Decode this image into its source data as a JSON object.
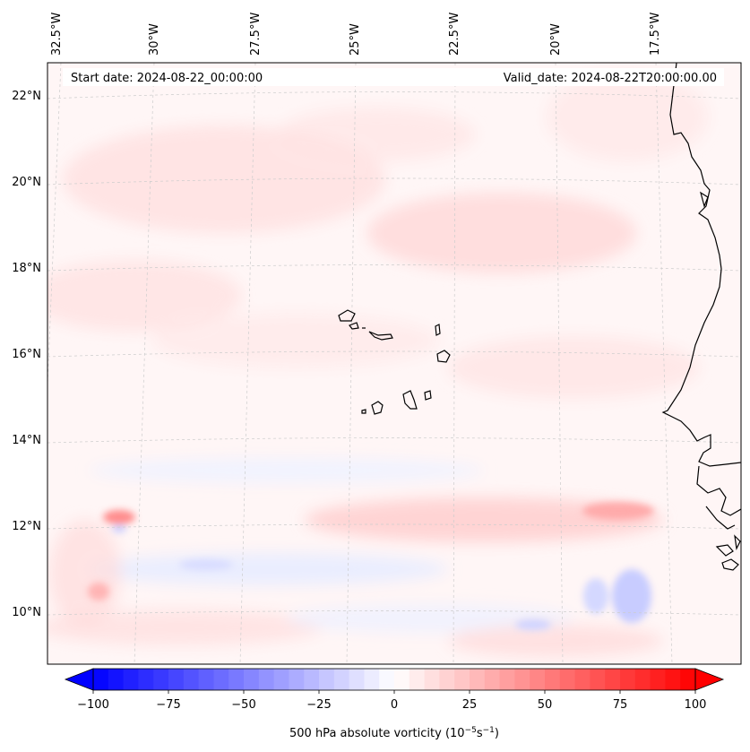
{
  "header": {
    "start_date": "Start date: 2024-08-22_00:00:00",
    "valid_date": "Valid_date: 2024-08-22T20:00:00.00"
  },
  "top_labels": [
    "32.5°W",
    "30°W",
    "27.5°W",
    "25°W",
    "22.5°W",
    "20°W",
    "17.5°W"
  ],
  "lat_labels": [
    "22°N",
    "20°N",
    "18°N",
    "16°N",
    "14°N",
    "12°N",
    "10°N"
  ],
  "colorbar": {
    "ticks": [
      "−100",
      "−75",
      "−50",
      "−25",
      "0",
      "25",
      "50",
      "75",
      "100"
    ],
    "tick_values": [
      -100,
      -75,
      -50,
      -25,
      0,
      25,
      50,
      75,
      100
    ],
    "range": [
      -100,
      100
    ],
    "label_text": "500 hPa absolute vorticity (10",
    "label_exp1": "−5",
    "label_mid": "s",
    "label_exp2": "−1",
    "label_end": ")",
    "colors": {
      "low": "#0000ff",
      "mid": "#ffffff",
      "high": "#ff0000"
    }
  }
}
